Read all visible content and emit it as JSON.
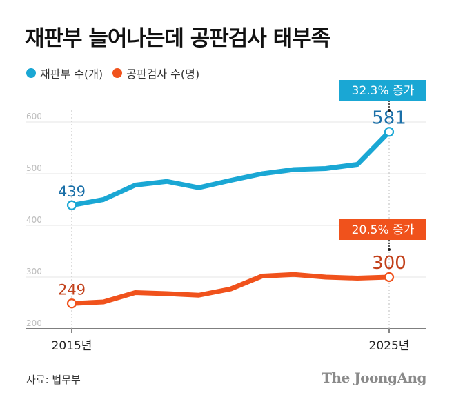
{
  "title": "재판부 늘어나는데 공판검사 태부족",
  "legend": {
    "judges": "재판부 수(개)",
    "prosecutors": "공판검사 수(명)"
  },
  "source": "자료: 법무부",
  "brand": "The JoongAng",
  "colors": {
    "judges": "#1aa7d4",
    "prosecutors": "#f0521c",
    "judges_label": "#1a6fa8",
    "prosecutors_label": "#c2401a"
  },
  "chart_data": {
    "type": "line",
    "title": "재판부 늘어나는데 공판검사 태부족",
    "x": [
      2015,
      2016,
      2017,
      2018,
      2019,
      2020,
      2021,
      2022,
      2023,
      2024,
      2025
    ],
    "x_tick_labels": [
      "2015년",
      "2025년"
    ],
    "ylim": [
      200,
      600
    ],
    "y_ticks": [
      "200",
      "300",
      "400",
      "500",
      "600"
    ],
    "series": [
      {
        "name": "재판부 수(개)",
        "values": [
          439,
          450,
          478,
          485,
          473,
          487,
          500,
          508,
          510,
          518,
          581
        ],
        "start_label": "439",
        "end_label": "581",
        "callout": "32.3% 증가"
      },
      {
        "name": "공판검사 수(명)",
        "values": [
          249,
          252,
          270,
          268,
          265,
          277,
          302,
          305,
          300,
          298,
          300
        ],
        "start_label": "249",
        "end_label": "300",
        "callout": "20.5% 증가"
      }
    ]
  }
}
